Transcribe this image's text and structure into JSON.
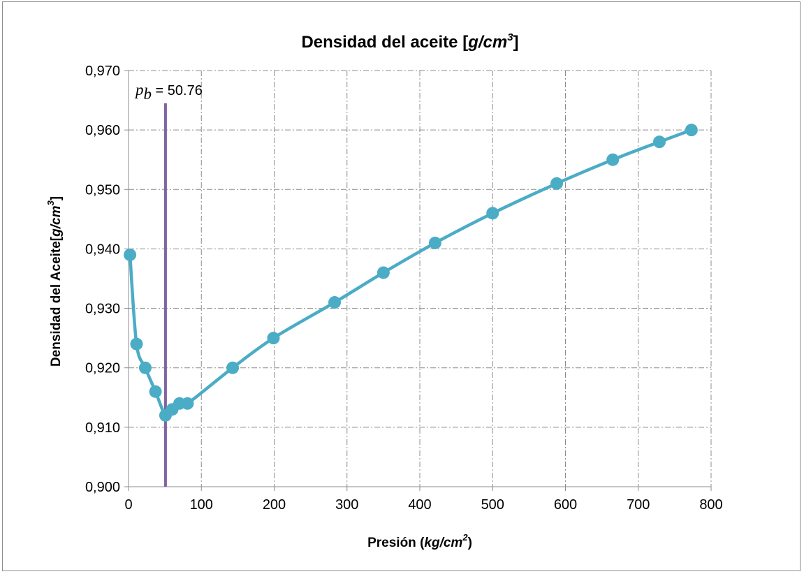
{
  "chart_data": {
    "type": "line",
    "title": {
      "prefix": "Densidad del aceite [",
      "unit": "g/cm",
      "sup": "3",
      "suffix": "]"
    },
    "xlabel": {
      "prefix": "Presión (",
      "unit": "kg/cm",
      "sup": "2",
      "suffix": ")"
    },
    "ylabel": {
      "prefix": "Densidad del Aceite[",
      "unit": "g/cm",
      "sup": "3",
      "suffix": "]"
    },
    "xlim": [
      0,
      800
    ],
    "ylim": [
      0.9,
      0.97
    ],
    "x_ticks": [
      0,
      100,
      200,
      300,
      400,
      500,
      600,
      700,
      800
    ],
    "x_tick_labels": [
      "0",
      "100",
      "200",
      "300",
      "400",
      "500",
      "600",
      "700",
      "800"
    ],
    "y_ticks": [
      0.9,
      0.91,
      0.92,
      0.93,
      0.94,
      0.95,
      0.96,
      0.97
    ],
    "y_tick_labels": [
      "0,900",
      "0,910",
      "0,920",
      "0,930",
      "0,940",
      "0,950",
      "0,960",
      "0,970"
    ],
    "grid": true,
    "series": [
      {
        "color": "#4bacc6",
        "x": [
          2,
          11,
          23,
          37,
          50.76,
          60,
          70,
          81,
          143,
          199,
          283,
          350,
          421,
          500,
          588,
          665,
          729,
          773
        ],
        "y": [
          0.939,
          0.924,
          0.92,
          0.916,
          0.912,
          0.913,
          0.914,
          0.914,
          0.92,
          0.925,
          0.931,
          0.936,
          0.941,
          0.946,
          0.951,
          0.955,
          0.958,
          0.96
        ]
      }
    ],
    "annotations": [
      {
        "type": "vline",
        "x": 50.76,
        "y_from": 0.9,
        "y_to": 0.9645,
        "color": "#8064a2",
        "label_symbol": "p",
        "label_subscript": "b",
        "label_text": " = 50.76"
      }
    ]
  }
}
